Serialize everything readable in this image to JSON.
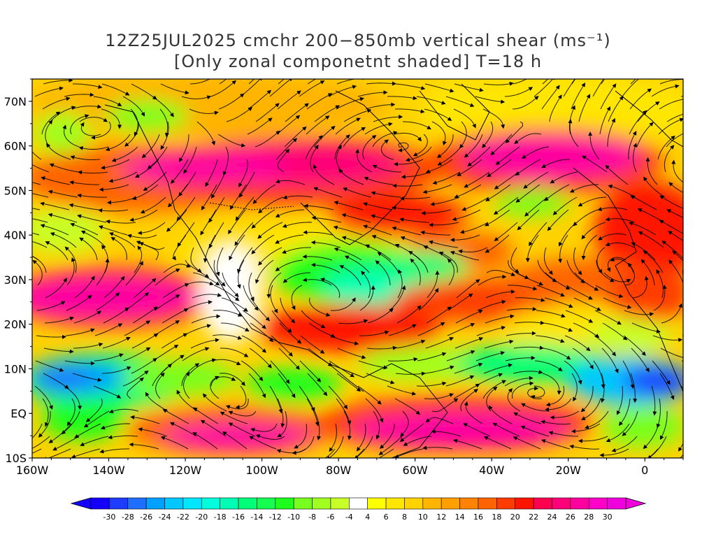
{
  "title": {
    "line1": "12Z25JUL2025 cmchr 200−850mb vertical shear (ms⁻¹)",
    "line2": "[Only zonal componetnt shaded] T=18 h"
  },
  "map": {
    "lat_ticks": [
      "70N",
      "60N",
      "50N",
      "40N",
      "30N",
      "20N",
      "10N",
      "EQ",
      "10S"
    ],
    "lon_ticks": [
      "160W",
      "140W",
      "120W",
      "100W",
      "80W",
      "60W",
      "40W",
      "20W",
      "0"
    ],
    "lat_range": [
      -10,
      75
    ],
    "lon_range": [
      -160,
      10
    ]
  },
  "colorbar": {
    "labels": [
      "-30",
      "-28",
      "-26",
      "-24",
      "-22",
      "-20",
      "-18",
      "-16",
      "-14",
      "-12",
      "-10",
      "-8",
      "-6",
      "-4",
      "4",
      "6",
      "8",
      "10",
      "12",
      "14",
      "16",
      "18",
      "20",
      "22",
      "24",
      "26",
      "28",
      "30"
    ],
    "colors": [
      "#1400ff",
      "#1e3cff",
      "#1e6eff",
      "#00a0ff",
      "#00c8ff",
      "#00e6ff",
      "#00ffdc",
      "#00ffb4",
      "#00ff78",
      "#14ff50",
      "#1eff1e",
      "#78ff1e",
      "#a0ff1e",
      "#c8ff28",
      "#ffffff",
      "#ffff00",
      "#ffe600",
      "#ffd200",
      "#ffb400",
      "#ffa000",
      "#ff8200",
      "#ff6400",
      "#ff3c00",
      "#ff1400",
      "#ff0050",
      "#ff0078",
      "#ff00a0",
      "#ff00c8",
      "#f000dc"
    ]
  }
}
